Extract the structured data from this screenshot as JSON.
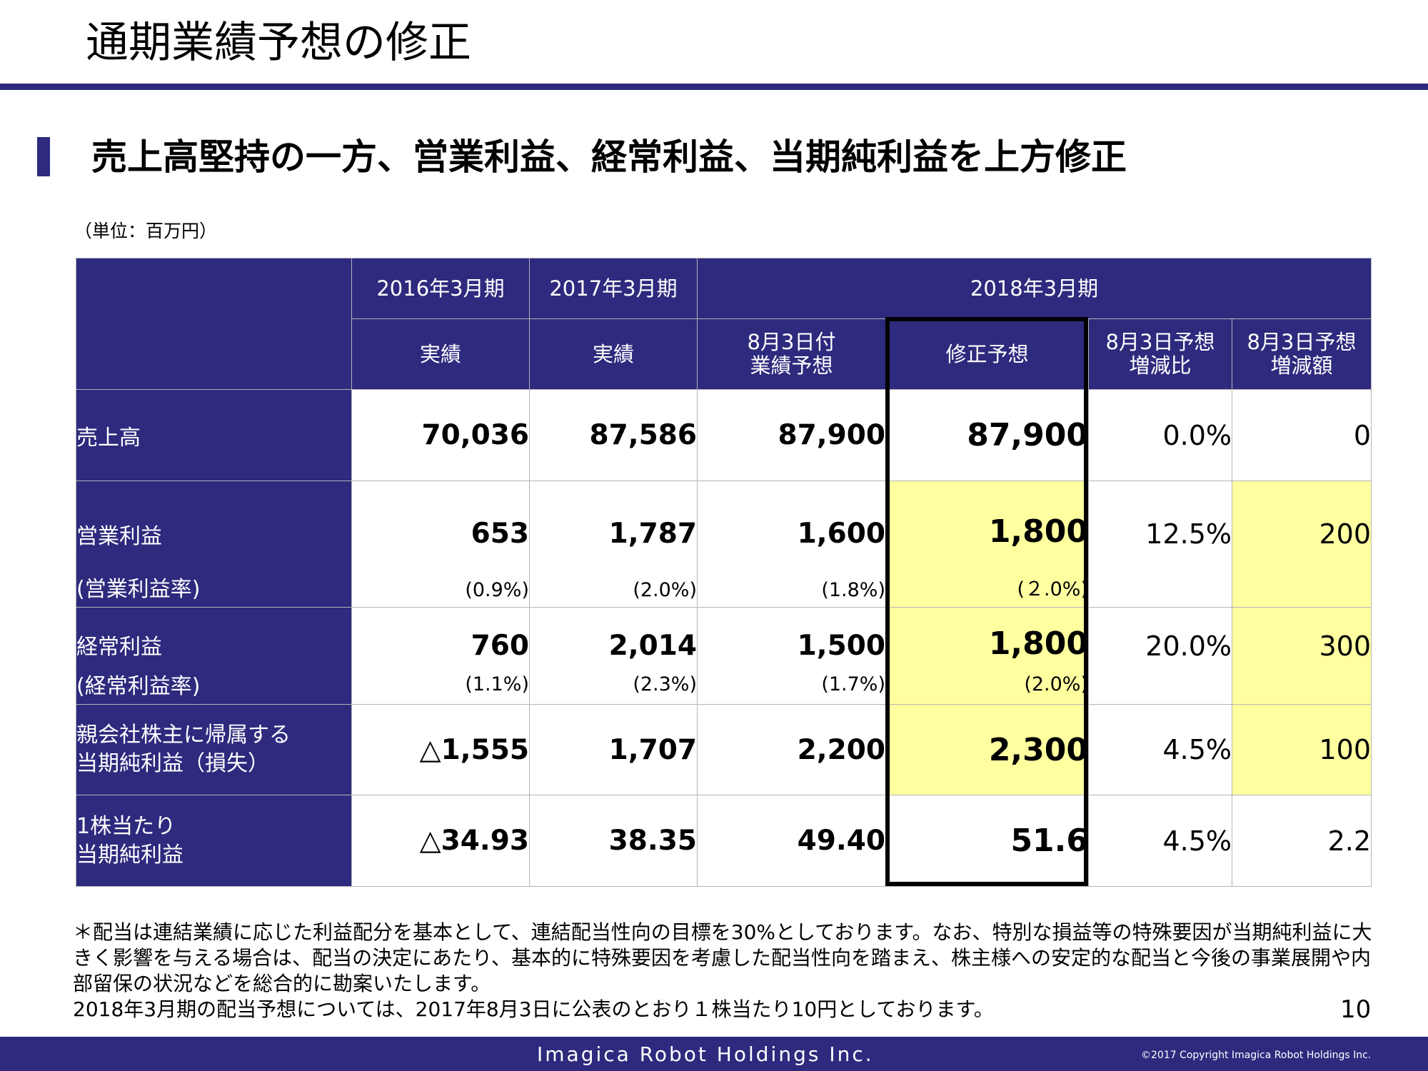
{
  "slide": {
    "title": "通期業績予想の修正",
    "subtitle": "売上高堅持の一方、営業利益、経常利益、当期純利益を上方修正",
    "unit": "（単位：百万円）",
    "page_number": "10"
  },
  "table": {
    "period_headers": [
      "2016年3月期",
      "2017年3月期",
      "2018年3月期"
    ],
    "sub_headers": [
      "実績",
      "実績",
      "8月3日付\n業績予想",
      "修正予想",
      "8月3日予想\n増減比",
      "8月3日予想\n増減額"
    ],
    "rows": {
      "sales": {
        "label": "売上高",
        "values": [
          "70,036",
          "87,586",
          "87,900",
          "87,900",
          "0.0%",
          "0"
        ]
      },
      "operating_profit": {
        "label": "営業利益",
        "values": [
          "653",
          "1,787",
          "1,600",
          "1,800",
          "12.5%",
          "200"
        ]
      },
      "operating_margin": {
        "label": "(営業利益率)",
        "values": [
          "(0.9%)",
          "(2.0%)",
          "(1.8%)",
          "(２.0%)"
        ]
      },
      "ordinary_profit": {
        "label": "経常利益",
        "values": [
          "760",
          "2,014",
          "1,500",
          "1,800",
          "20.0%",
          "300"
        ]
      },
      "ordinary_margin": {
        "label": "(経常利益率)",
        "values": [
          "(1.1%)",
          "(2.3%)",
          "(1.7%)",
          "(2.0%)"
        ]
      },
      "net_income": {
        "label": "親会社株主に帰属する\n当期純利益（損失）",
        "values": [
          "△1,555",
          "1,707",
          "2,200",
          "2,300",
          "4.5%",
          "100"
        ]
      },
      "eps": {
        "label": "1株当たり\n当期純利益",
        "values": [
          "△34.93",
          "38.35",
          "49.40",
          "51.6",
          "4.5%",
          "2.2"
        ]
      }
    },
    "colors": {
      "header_bg": "#2e2a7e",
      "highlight": "#ffffa0"
    }
  },
  "note": "＊配当は連結業績に応じた利益配分を基本として、連結配当性向の目標を30%としております。なお、特別な損益等の特殊要因が当期純利益に大きく影響を与える場合は、配当の決定にあたり、基本的に特殊要因を考慮した配当性向を踏まえ、株主様への安定的な配当と今後の事業展開や内部留保の状況などを総合的に勘案いたします。\n2018年3月期の配当予想については、2017年8月3日に公表のとおり１株当たり10円としております。",
  "footer": {
    "brand": "Imagica Robot Holdings Inc.",
    "copyright": "©2017  Copyright Imagica Robot Holdings Inc."
  }
}
